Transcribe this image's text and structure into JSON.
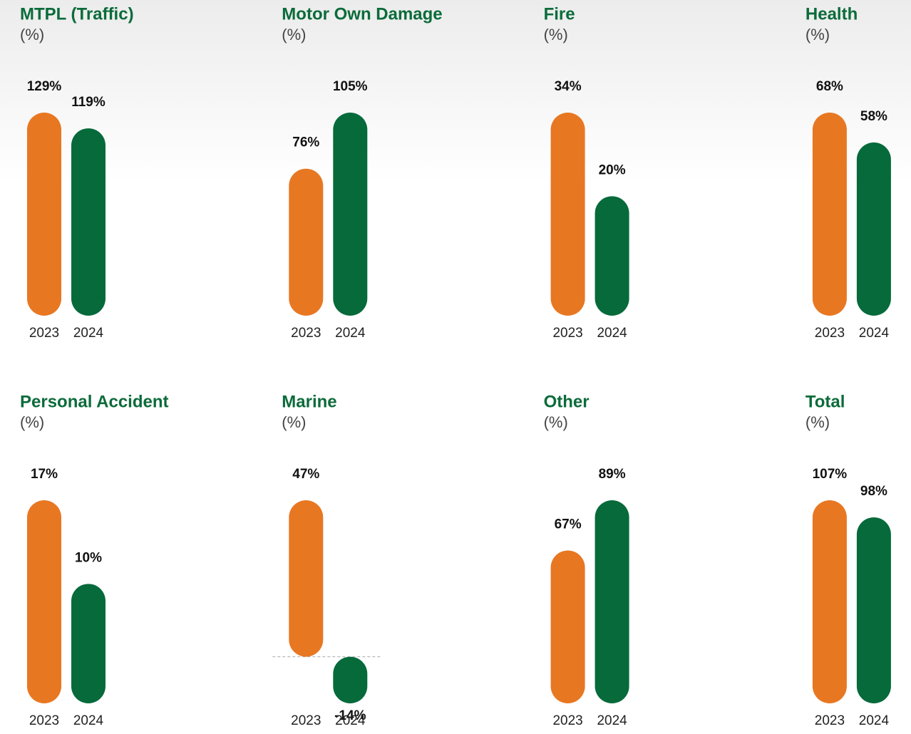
{
  "chart_data": [
    {
      "type": "bar",
      "title": "MTPL (Traffic)",
      "subtitle": "(%)",
      "categories": [
        "2023",
        "2024"
      ],
      "values": [
        129,
        119
      ],
      "value_labels": [
        "129%",
        "119%"
      ],
      "colors": [
        "#e87722",
        "#066a3b"
      ]
    },
    {
      "type": "bar",
      "title": "Motor Own Damage",
      "subtitle": "(%)",
      "categories": [
        "2023",
        "2024"
      ],
      "values": [
        76,
        105
      ],
      "value_labels": [
        "76%",
        "105%"
      ],
      "colors": [
        "#e87722",
        "#066a3b"
      ]
    },
    {
      "type": "bar",
      "title": "Fire",
      "subtitle": "(%)",
      "categories": [
        "2023",
        "2024"
      ],
      "values": [
        34,
        20
      ],
      "value_labels": [
        "34%",
        "20%"
      ],
      "colors": [
        "#e87722",
        "#066a3b"
      ]
    },
    {
      "type": "bar",
      "title": "Health",
      "subtitle": "(%)",
      "categories": [
        "2023",
        "2024"
      ],
      "values": [
        68,
        58
      ],
      "value_labels": [
        "68%",
        "58%"
      ],
      "colors": [
        "#e87722",
        "#066a3b"
      ]
    },
    {
      "type": "bar",
      "title": "Personal Accident",
      "subtitle": "(%)",
      "categories": [
        "2023",
        "2024"
      ],
      "values": [
        17,
        10
      ],
      "value_labels": [
        "17%",
        "10%"
      ],
      "colors": [
        "#e87722",
        "#066a3b"
      ]
    },
    {
      "type": "bar",
      "title": "Marine",
      "subtitle": "(%)",
      "categories": [
        "2023",
        "2024"
      ],
      "values": [
        47,
        -14
      ],
      "value_labels": [
        "47%",
        "-14%"
      ],
      "colors": [
        "#e87722",
        "#066a3b"
      ]
    },
    {
      "type": "bar",
      "title": "Other",
      "subtitle": "(%)",
      "categories": [
        "2023",
        "2024"
      ],
      "values": [
        67,
        89
      ],
      "value_labels": [
        "67%",
        "89%"
      ],
      "colors": [
        "#e87722",
        "#066a3b"
      ]
    },
    {
      "type": "bar",
      "title": "Total",
      "subtitle": "(%)",
      "categories": [
        "2023",
        "2024"
      ],
      "values": [
        107,
        98
      ],
      "value_labels": [
        "107%",
        "98%"
      ],
      "colors": [
        "#e87722",
        "#066a3b"
      ]
    }
  ]
}
